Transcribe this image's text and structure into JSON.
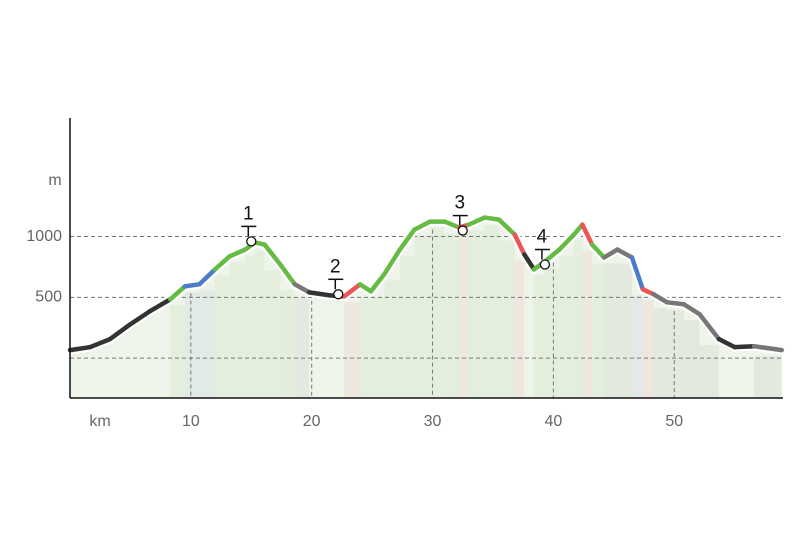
{
  "chart_data": {
    "type": "elevation-profile",
    "x_label": "km",
    "y_label": "m",
    "xlim": [
      0,
      59
    ],
    "ylim": [
      -328,
      1975
    ],
    "xticks": [
      10,
      20,
      30,
      40,
      50
    ],
    "yticks": [
      {
        "value": 0,
        "label": null
      },
      500,
      1000
    ],
    "grid": true,
    "x": [
      0,
      1.65,
      3.3,
      5,
      6.6,
      8.3,
      9.5,
      10.7,
      12,
      13.2,
      14.5,
      15.3,
      16.1,
      17.4,
      18.6,
      19.8,
      21.5,
      22.7,
      24,
      24.9,
      26,
      27.3,
      28.5,
      29.8,
      31,
      32.2,
      33,
      34.3,
      35.5,
      36.8,
      37.6,
      38.4,
      39.3,
      40.5,
      41.7,
      42.4,
      43.2,
      44.2,
      45.3,
      46.5,
      47.4,
      48.3,
      49.4,
      50.8,
      52.1,
      53.7,
      55,
      56.6,
      58.9
    ],
    "values": [
      66,
      90,
      156,
      279,
      385,
      484,
      590,
      607,
      730,
      836,
      893,
      951,
      934,
      770,
      607,
      541,
      516,
      508,
      607,
      549,
      689,
      893,
      1057,
      1123,
      1123,
      1074,
      1098,
      1156,
      1139,
      1016,
      852,
      730,
      795,
      893,
      1016,
      1098,
      934,
      828,
      893,
      828,
      566,
      525,
      459,
      443,
      361,
      156,
      90,
      98,
      66
    ],
    "segment_colors": [
      "#333333",
      "#333333",
      "#333333",
      "#333333",
      "#333333",
      "#66bb44",
      "#4a7cc8",
      "#4a7cc8",
      "#66bb44",
      "#66bb44",
      "#66bb44",
      "#66bb44",
      "#66bb44",
      "#66bb44",
      "#777777",
      "#333333",
      "#333333",
      "#ee5555",
      "#66bb44",
      "#66bb44",
      "#66bb44",
      "#66bb44",
      "#66bb44",
      "#66bb44",
      "#66bb44",
      "#ee5555",
      "#66bb44",
      "#66bb44",
      "#66bb44",
      "#ee5555",
      "#333333",
      "#66bb44",
      "#66bb44",
      "#66bb44",
      "#66bb44",
      "#ee5555",
      "#66bb44",
      "#777777",
      "#777777",
      "#4a7cc8",
      "#ee5555",
      "#777777",
      "#777777",
      "#777777",
      "#777777",
      "#333333",
      "#333333",
      "#777777"
    ],
    "waypoints": [
      {
        "label": "1",
        "x": 15.0,
        "y": 960
      },
      {
        "label": "2",
        "x": 22.2,
        "y": 525
      },
      {
        "label": "3",
        "x": 32.5,
        "y": 1049
      },
      {
        "label": "4",
        "x": 39.3,
        "y": 770
      }
    ]
  }
}
